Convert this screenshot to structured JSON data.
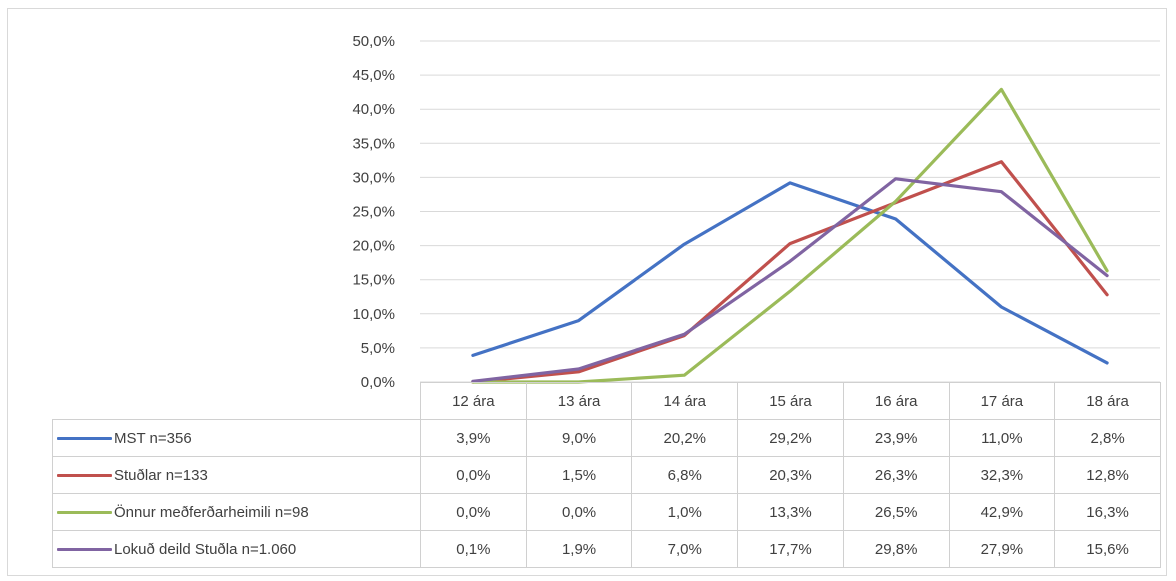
{
  "chart_data": {
    "type": "line",
    "categories": [
      "12 ára",
      "13 ára",
      "14 ára",
      "15 ára",
      "16 ára",
      "17 ára",
      "18 ára"
    ],
    "ylim": [
      0,
      50
    ],
    "yticks": [
      "0,0%",
      "5,0%",
      "10,0%",
      "15,0%",
      "20,0%",
      "25,0%",
      "30,0%",
      "35,0%",
      "40,0%",
      "45,0%",
      "50,0%"
    ],
    "grid": true,
    "legend": "data-table",
    "series": [
      {
        "name": "MST n=356",
        "color": "#4472c4",
        "values": [
          3.9,
          9.0,
          20.2,
          29.2,
          23.9,
          11.0,
          2.8
        ],
        "labels": [
          "3,9%",
          "9,0%",
          "20,2%",
          "29,2%",
          "23,9%",
          "11,0%",
          "2,8%"
        ]
      },
      {
        "name": "Stuðlar n=133",
        "color": "#c0504d",
        "values": [
          0.0,
          1.5,
          6.8,
          20.3,
          26.3,
          32.3,
          12.8
        ],
        "labels": [
          "0,0%",
          "1,5%",
          "6,8%",
          "20,3%",
          "26,3%",
          "32,3%",
          "12,8%"
        ]
      },
      {
        "name": "Önnur meðferðarheimili n=98",
        "color": "#9bbb59",
        "values": [
          0.0,
          0.0,
          1.0,
          13.3,
          26.5,
          42.9,
          16.3
        ],
        "labels": [
          "0,0%",
          "0,0%",
          "1,0%",
          "13,3%",
          "26,5%",
          "42,9%",
          "16,3%"
        ]
      },
      {
        "name": "Lokuð deild Stuðla n=1.060",
        "color": "#8064a2",
        "values": [
          0.1,
          1.9,
          7.0,
          17.7,
          29.8,
          27.9,
          15.6
        ],
        "labels": [
          "0,1%",
          "1,9%",
          "7,0%",
          "17,7%",
          "29,8%",
          "27,9%",
          "15,6%"
        ]
      }
    ]
  }
}
